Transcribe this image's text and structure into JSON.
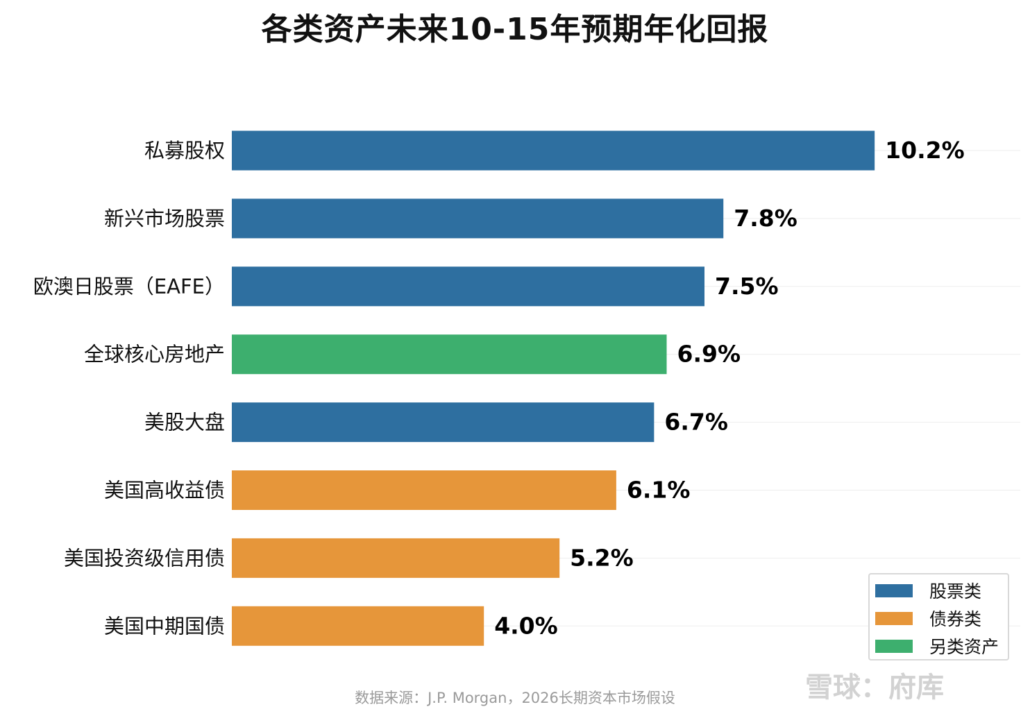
{
  "chart_data": {
    "type": "bar",
    "orientation": "horizontal",
    "title": "各类资产未来10-15年预期年化回报",
    "categories": [
      "私募股权",
      "新兴市场股票",
      "欧澳日股票（EAFE）",
      "全球核心房地产",
      "美股大盘",
      "美国高收益债",
      "美国投资级信用债",
      "美国中期国债"
    ],
    "values": [
      10.2,
      7.8,
      7.5,
      6.9,
      6.7,
      6.1,
      5.2,
      4.0
    ],
    "value_labels": [
      "10.2%",
      "7.8%",
      "7.5%",
      "6.9%",
      "6.7%",
      "6.1%",
      "5.2%",
      "4.0%"
    ],
    "groups": [
      "股票类",
      "股票类",
      "股票类",
      "另类资产",
      "股票类",
      "债券类",
      "债券类",
      "债券类"
    ],
    "legend": [
      {
        "name": "股票类",
        "color": "#2e6fa0"
      },
      {
        "name": "债券类",
        "color": "#e6963a"
      },
      {
        "name": "另类资产",
        "color": "#3daf6e"
      }
    ],
    "legend_position": "bottom-right",
    "xlim": [
      0,
      12.5
    ],
    "grid": true,
    "xlabel": "",
    "ylabel": ""
  },
  "source_note": "数据来源：J.P. Morgan，2026长期资本市场假设",
  "watermark": "雪球：府库"
}
